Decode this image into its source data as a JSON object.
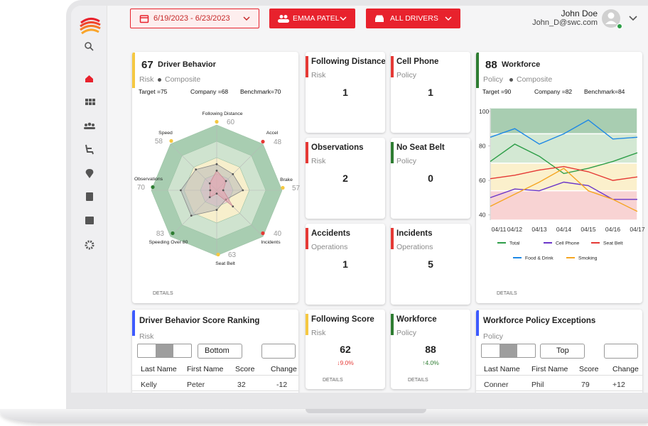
{
  "header": {
    "date_range": "6/19/2023 - 6/23/2023",
    "person": "EMMA PATEL",
    "drivers": "ALL DRIVERS",
    "user_name": "John Doe",
    "user_email": "John_D@swc.com"
  },
  "driver_behavior": {
    "score": 67,
    "title": "Driver Behavior",
    "category": "Risk",
    "subcategory": "Composite",
    "target": "Target =75",
    "company": "Company =68",
    "benchmark": "Benchmark=70",
    "details": "DETAILS",
    "color": "#f5c842"
  },
  "workforce": {
    "score": 88,
    "title": "Workforce",
    "category": "Policy",
    "subcategory": "Composite",
    "target": "Target =90",
    "company": "Company =82",
    "benchmark": "Benchmark=84",
    "details": "DETAILS",
    "color": "#2e7d32"
  },
  "cards": [
    {
      "title": "Following Distance",
      "category": "Risk",
      "value": 1,
      "color": "#e53935"
    },
    {
      "title": "Cell Phone",
      "category": "Policy",
      "value": 1,
      "color": "#e53935"
    },
    {
      "title": "Observations",
      "category": "Risk",
      "value": 2,
      "color": "#e53935"
    },
    {
      "title": "No Seat Belt",
      "category": "Policy",
      "value": 0,
      "color": "#2e7d32"
    },
    {
      "title": "Accidents",
      "category": "Operations",
      "value": 1,
      "color": "#e53935"
    },
    {
      "title": "Incidents",
      "category": "Operations",
      "value": 5,
      "color": "#e53935"
    },
    {
      "title": "Following Score",
      "category": "Risk",
      "value": 62,
      "change": "↓9.0%",
      "change_color": "#e53935",
      "details": "DETAILS",
      "color": "#f5c842"
    },
    {
      "title": "Workforce",
      "category": "Policy",
      "value": 88,
      "change": "↑4.0%",
      "change_color": "#2e7d32",
      "details": "DETAILS",
      "color": "#2e7d32"
    }
  ],
  "ranking": {
    "title": "Driver Behavior Score Ranking",
    "category": "Risk",
    "sort": "Bottom",
    "columns": [
      "Last Name",
      "First Name",
      "Score",
      "Change"
    ],
    "rows": [
      [
        "Kelly",
        "Peter",
        "32",
        "-12"
      ]
    ],
    "color": "#3d5afe"
  },
  "exceptions": {
    "title": "Workforce Policy Exceptions",
    "category": "Policy",
    "sort": "Top",
    "columns": [
      "Last Name",
      "First Name",
      "Score",
      "Change"
    ],
    "rows": [
      [
        "Conner",
        "Phil",
        "79",
        "+12"
      ]
    ],
    "color": "#3d5afe"
  },
  "chart_data": [
    {
      "type": "radar",
      "categories": [
        "Following Distance",
        "Accel",
        "Brake",
        "Incidents",
        "Seat Belt",
        "Speeding Over 80",
        "Observations",
        "Speed"
      ],
      "scores": [
        60,
        48,
        57,
        40,
        63,
        83,
        70,
        58
      ],
      "score_colors": [
        "#f5c842",
        "#e53935",
        "#f5c842",
        "#e53935",
        "#f5c842",
        "#2e7d32",
        "#2e7d32",
        "#f5c842"
      ],
      "rlim": [
        0,
        100
      ],
      "rings": [
        {
          "to": 100,
          "color": "#a8cdb1"
        },
        {
          "to": 75,
          "color": "#cfe3cf"
        },
        {
          "to": 50,
          "color": "#f7efcc"
        },
        {
          "to": 25,
          "color": "#f4d3d5"
        }
      ],
      "series": [
        {
          "color": "#b8b8b8",
          "values": [
            40,
            35,
            40,
            20,
            30,
            55,
            55,
            45
          ]
        },
        {
          "color": "#e6a3ad",
          "values": [
            30,
            20,
            10,
            35,
            5,
            15,
            10,
            15
          ]
        }
      ]
    },
    {
      "type": "line",
      "x": [
        "04/11",
        "04/12",
        "04/13",
        "04/14",
        "04/15",
        "04/16",
        "04/17"
      ],
      "ylim": [
        37,
        102
      ],
      "yticks": [
        100,
        80,
        60,
        40
      ],
      "bands": [
        {
          "from": 87,
          "to": 102,
          "color": "#a8cdb1"
        },
        {
          "from": 70,
          "to": 87,
          "color": "#d3e8d3"
        },
        {
          "from": 54,
          "to": 70,
          "color": "#fbf0cc"
        },
        {
          "from": 37,
          "to": 54,
          "color": "#f8d3d3"
        }
      ],
      "series": [
        {
          "name": "Total",
          "color": "#2e9e48",
          "values": [
            71,
            81,
            74,
            64,
            67,
            71,
            76
          ]
        },
        {
          "name": "Cell Phone",
          "color": "#6a35c9",
          "values": [
            50,
            55,
            54,
            59,
            57,
            49,
            49
          ]
        },
        {
          "name": "Seat Belt",
          "color": "#e53935",
          "values": [
            61,
            63,
            66,
            68,
            65,
            60,
            62
          ]
        },
        {
          "name": "Food & Drink",
          "color": "#1e88e5",
          "values": [
            85,
            90,
            81,
            87,
            95,
            84,
            85
          ]
        },
        {
          "name": "Smoking",
          "color": "#f5a623",
          "values": [
            45,
            52,
            59,
            67,
            54,
            49,
            42
          ]
        }
      ]
    }
  ]
}
